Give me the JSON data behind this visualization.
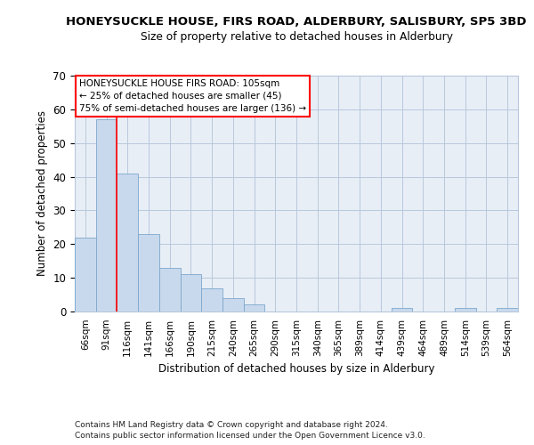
{
  "title_line1": "HONEYSUCKLE HOUSE, FIRS ROAD, ALDERBURY, SALISBURY, SP5 3BD",
  "title_line2": "Size of property relative to detached houses in Alderbury",
  "xlabel": "Distribution of detached houses by size in Alderbury",
  "ylabel": "Number of detached properties",
  "footnote1": "Contains HM Land Registry data © Crown copyright and database right 2024.",
  "footnote2": "Contains public sector information licensed under the Open Government Licence v3.0.",
  "bar_labels": [
    "66sqm",
    "91sqm",
    "116sqm",
    "141sqm",
    "166sqm",
    "190sqm",
    "215sqm",
    "240sqm",
    "265sqm",
    "290sqm",
    "315sqm",
    "340sqm",
    "365sqm",
    "389sqm",
    "414sqm",
    "439sqm",
    "464sqm",
    "489sqm",
    "514sqm",
    "539sqm",
    "564sqm"
  ],
  "bar_values": [
    22,
    57,
    41,
    23,
    13,
    11,
    7,
    4,
    2,
    0,
    0,
    0,
    0,
    0,
    0,
    1,
    0,
    0,
    1,
    0,
    1
  ],
  "bar_color": "#c9d9ed",
  "bar_edge_color": "#7ba7cc",
  "grid_color": "#b8c8dc",
  "background_color": "#e8eef6",
  "red_line_x": 1.5,
  "annotation_text_line1": "HONEYSUCKLE HOUSE FIRS ROAD: 105sqm",
  "annotation_text_line2": "← 25% of detached houses are smaller (45)",
  "annotation_text_line3": "75% of semi-detached houses are larger (136) →",
  "ylim": [
    0,
    70
  ],
  "yticks": [
    0,
    10,
    20,
    30,
    40,
    50,
    60,
    70
  ]
}
